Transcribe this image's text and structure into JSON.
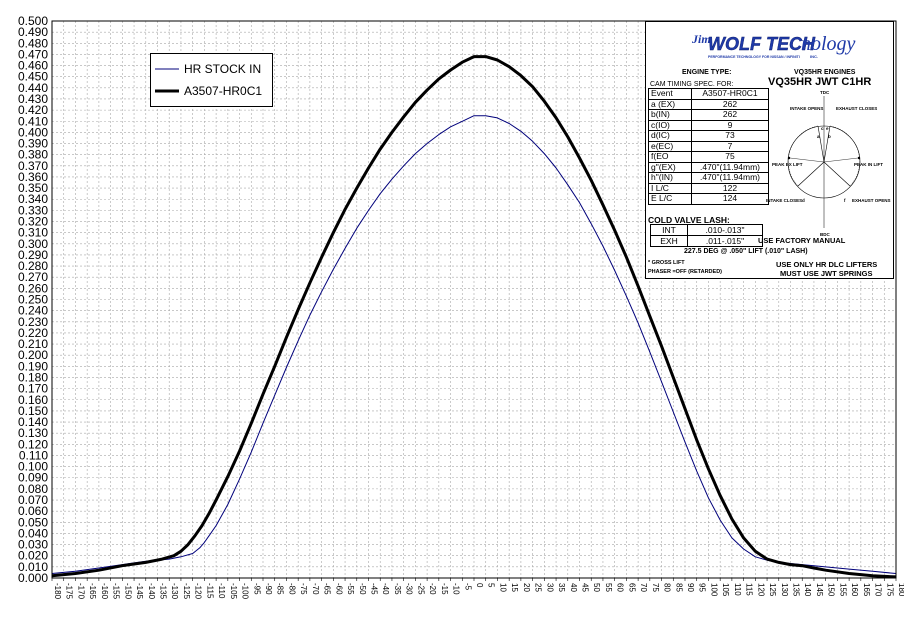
{
  "chart_data": {
    "type": "line",
    "xlabel": "",
    "ylabel": "",
    "xlim": [
      -180,
      180
    ],
    "ylim": [
      0,
      0.5
    ],
    "xtick_step": 5,
    "ytick_step": 0.01,
    "grid": true,
    "legend_position": "top-left",
    "series": [
      {
        "name": "HR STOCK IN",
        "color": "#00007b",
        "width": 1,
        "points": [
          [
            -180,
            0.004
          ],
          [
            -170,
            0.006
          ],
          [
            -160,
            0.009
          ],
          [
            -150,
            0.012
          ],
          [
            -140,
            0.015
          ],
          [
            -130,
            0.017
          ],
          [
            -125,
            0.019
          ],
          [
            -120,
            0.022
          ],
          [
            -117,
            0.027
          ],
          [
            -115,
            0.032
          ],
          [
            -113,
            0.038
          ],
          [
            -110,
            0.047
          ],
          [
            -105,
            0.066
          ],
          [
            -100,
            0.089
          ],
          [
            -95,
            0.113
          ],
          [
            -90,
            0.139
          ],
          [
            -85,
            0.164
          ],
          [
            -80,
            0.189
          ],
          [
            -75,
            0.213
          ],
          [
            -70,
            0.236
          ],
          [
            -65,
            0.257
          ],
          [
            -60,
            0.277
          ],
          [
            -55,
            0.296
          ],
          [
            -50,
            0.314
          ],
          [
            -45,
            0.33
          ],
          [
            -40,
            0.345
          ],
          [
            -35,
            0.358
          ],
          [
            -30,
            0.37
          ],
          [
            -25,
            0.381
          ],
          [
            -20,
            0.39
          ],
          [
            -15,
            0.398
          ],
          [
            -10,
            0.405
          ],
          [
            -5,
            0.41
          ],
          [
            0,
            0.415
          ],
          [
            5,
            0.415
          ],
          [
            10,
            0.413
          ],
          [
            15,
            0.408
          ],
          [
            20,
            0.401
          ],
          [
            25,
            0.392
          ],
          [
            30,
            0.381
          ],
          [
            35,
            0.368
          ],
          [
            40,
            0.353
          ],
          [
            45,
            0.337
          ],
          [
            50,
            0.318
          ],
          [
            55,
            0.298
          ],
          [
            60,
            0.276
          ],
          [
            65,
            0.253
          ],
          [
            70,
            0.229
          ],
          [
            75,
            0.203
          ],
          [
            80,
            0.176
          ],
          [
            85,
            0.149
          ],
          [
            90,
            0.122
          ],
          [
            95,
            0.096
          ],
          [
            100,
            0.072
          ],
          [
            105,
            0.052
          ],
          [
            110,
            0.036
          ],
          [
            115,
            0.026
          ],
          [
            120,
            0.019
          ],
          [
            125,
            0.016
          ],
          [
            130,
            0.014
          ],
          [
            140,
            0.012
          ],
          [
            150,
            0.01
          ],
          [
            160,
            0.008
          ],
          [
            170,
            0.006
          ],
          [
            180,
            0.004
          ]
        ]
      },
      {
        "name": "A3507-HR0C1",
        "color": "#000000",
        "width": 3,
        "points": [
          [
            -180,
            0.002
          ],
          [
            -170,
            0.004
          ],
          [
            -160,
            0.007
          ],
          [
            -150,
            0.011
          ],
          [
            -140,
            0.014
          ],
          [
            -133,
            0.017
          ],
          [
            -128,
            0.02
          ],
          [
            -125,
            0.024
          ],
          [
            -122,
            0.03
          ],
          [
            -119,
            0.038
          ],
          [
            -116,
            0.047
          ],
          [
            -113,
            0.058
          ],
          [
            -110,
            0.07
          ],
          [
            -105,
            0.091
          ],
          [
            -100,
            0.114
          ],
          [
            -95,
            0.139
          ],
          [
            -90,
            0.165
          ],
          [
            -85,
            0.19
          ],
          [
            -80,
            0.216
          ],
          [
            -75,
            0.241
          ],
          [
            -70,
            0.265
          ],
          [
            -65,
            0.288
          ],
          [
            -60,
            0.31
          ],
          [
            -55,
            0.331
          ],
          [
            -50,
            0.35
          ],
          [
            -45,
            0.368
          ],
          [
            -40,
            0.385
          ],
          [
            -35,
            0.4
          ],
          [
            -30,
            0.414
          ],
          [
            -25,
            0.427
          ],
          [
            -20,
            0.438
          ],
          [
            -15,
            0.448
          ],
          [
            -10,
            0.456
          ],
          [
            -5,
            0.463
          ],
          [
            0,
            0.468
          ],
          [
            5,
            0.468
          ],
          [
            10,
            0.465
          ],
          [
            15,
            0.459
          ],
          [
            20,
            0.451
          ],
          [
            25,
            0.441
          ],
          [
            30,
            0.428
          ],
          [
            35,
            0.413
          ],
          [
            40,
            0.396
          ],
          [
            45,
            0.377
          ],
          [
            50,
            0.357
          ],
          [
            55,
            0.335
          ],
          [
            60,
            0.312
          ],
          [
            65,
            0.288
          ],
          [
            70,
            0.262
          ],
          [
            75,
            0.235
          ],
          [
            80,
            0.208
          ],
          [
            85,
            0.18
          ],
          [
            90,
            0.152
          ],
          [
            95,
            0.124
          ],
          [
            100,
            0.098
          ],
          [
            105,
            0.074
          ],
          [
            110,
            0.053
          ],
          [
            115,
            0.036
          ],
          [
            120,
            0.024
          ],
          [
            125,
            0.017
          ],
          [
            130,
            0.014
          ],
          [
            135,
            0.012
          ],
          [
            140,
            0.011
          ],
          [
            145,
            0.009
          ],
          [
            150,
            0.007
          ],
          [
            160,
            0.004
          ],
          [
            170,
            0.002
          ],
          [
            180,
            0.001
          ]
        ]
      }
    ]
  },
  "legend": {
    "stock_label": "HR STOCK IN",
    "cam_label": "A3507-HR0C1"
  },
  "spec": {
    "logo_jim": "Jim",
    "logo_wolf": "WOLF TECH",
    "logo_nology": "nology",
    "logo_tagline": "PERFORMANCE TECHNOLOGY FOR NISSAN / INFINITI",
    "logo_inc": "INC.",
    "engine_type_label": "ENGINE TYPE:",
    "engine_type_value": "VQ35HR ENGINES",
    "cam_spec_label": "CAM TIMING SPEC. FOR:",
    "cam_title": "VQ35HR  JWT  C1HR",
    "table": [
      {
        "event": "Event",
        "value": "A3507-HR0C1"
      },
      {
        "event": "a (EX)",
        "value": "262"
      },
      {
        "event": "b(IN)",
        "value": "262"
      },
      {
        "event": "c(IO)",
        "value": "9"
      },
      {
        "event": "d(IC)",
        "value": "73"
      },
      {
        "event": "e(EC)",
        "value": "7"
      },
      {
        "event": "f(EO",
        "value": "75"
      },
      {
        "event": "g\"(EX)",
        "value": ".470\"(11.94mm)"
      },
      {
        "event": "h\"(IN)",
        "value": ".470\"(11.94mm)"
      },
      {
        "event": "I L/C",
        "value": "122"
      },
      {
        "event": "E L/C",
        "value": "124"
      }
    ],
    "cold_valve_lash": "COLD VALVE LASH:",
    "lash": [
      {
        "key": "INT",
        "value": ".010-.013\""
      },
      {
        "key": "EXH",
        "value": ".011-.015\""
      }
    ],
    "factory_manual": "USE FACTORY MANUAL",
    "duration_note": "227.5 DEG @ .050\" LIFT (.010\" LASH)",
    "gross_lift": "* GROSS LIFT",
    "phaser": "PHASER =OFF (RETARDED)",
    "lifters_note": "USE ONLY HR DLC LIFTERS",
    "springs_note": "MUST USE JWT SPRINGS",
    "diagram": {
      "tdc": "TDC",
      "bdc": "BDC",
      "intake_opens": "INTAKE OPENS",
      "exhaust_closes": "EXHAUST CLOSES",
      "peak_ex_lift": "PEAK EX LIFT",
      "peak_in_lift": "PEAK IN LIFT",
      "intake_closes": "INTAKE CLOSES",
      "exhaust_opens": "EXHAUST OPENS",
      "letters": [
        "a",
        "b",
        "c",
        "d",
        "e",
        "f"
      ]
    }
  }
}
